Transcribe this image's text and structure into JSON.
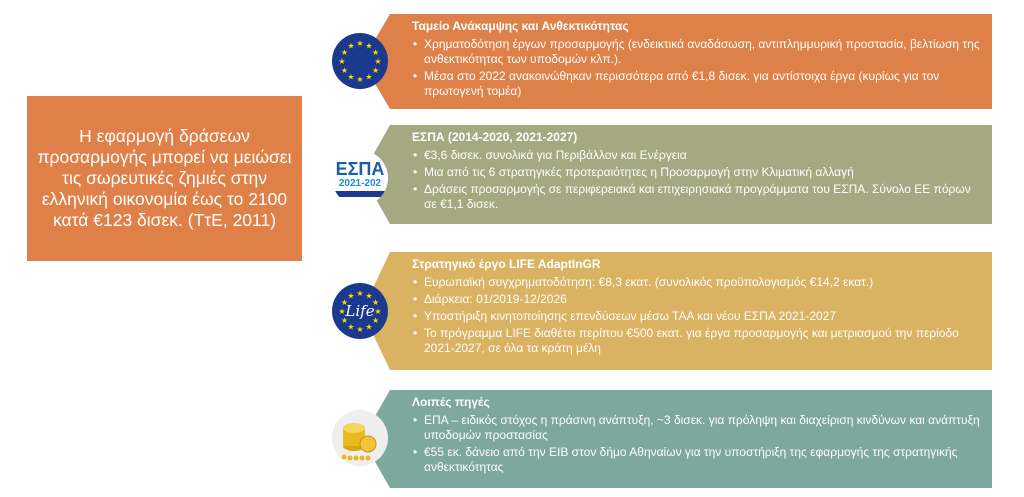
{
  "lead_text": "Η εφαρμογή δράσεων προσαρμογής μπορεί να μειώσει τις σωρευτικές ζημιές στην ελληνική οικονομία έως το 2100 κατά €123 δισεκ. (ΤτΕ, 2011)",
  "panels": [
    {
      "title": "Ταμείο Ανάκαμψης και Ανθεκτικότητας",
      "icon": "eu-flag-icon",
      "color": "#DE8149",
      "bullets": [
        "Χρηματοδότηση έργων προσαρμογής (ενδεικτικά αναδάσωση, αντιπλημμυρική προστασία, βελτίωση της ανθεκτικότητας των υποδομών κλπ.).",
        "Μέσα στο 2022 ανακοινώθηκαν περισσότερα από €1,8 δισεκ. για αντίστοιχα έργα (κυρίως για τον πρωτογενή τομέα)"
      ]
    },
    {
      "title": "ΕΣΠΑ (2014-2020, 2021-2027)",
      "icon": "espa-logo-icon",
      "color": "#A4A981",
      "logo_text": [
        "ΕΣΠΑ",
        "2021-202"
      ],
      "bullets": [
        "€3,6 δισεκ. συνολικά για Περιβάλλον και Ενέργεια",
        "Μια από τις 6 στρατηγικές προτεραιότητες η Προσαρμογή στην Κλιματική αλλαγή",
        "Δράσεις προσαρμογής σε περιφερειακά και επιχειρησιακά προγράμματα του ΕΣΠΑ. Σύνολο ΕΕ πόρων σε €1,1 δισεκ."
      ]
    },
    {
      "title": "Στρατηγικό έργο LIFE AdaptInGR",
      "icon": "life-logo-icon",
      "color": "#D9B262",
      "logo_text": "Life",
      "bullets": [
        "Ευρωπαϊκή συγχρηματοδότηση: €8,3 εκατ. (συνολικός προϋπολογισμός €14,2 εκατ.)",
        "Διάρκεια: 01/2019-12/2026",
        "Υποστήριξη κινητοποίησης επενδύσεων μέσω ΤΑΑ και νέου ΕΣΠΑ 2021-2027",
        "Το πρόγραμμα LIFE διαθέτει περίπου €500 εκατ. για έργα προσαρμογής και μετριασμού την περίοδο 2021-2027, σε όλα τα κράτη μέλη"
      ]
    },
    {
      "title": "Λοιπές πηγές",
      "icon": "gold-coins-icon",
      "color": "#7CA89D",
      "bullets": [
        "ΕΠΑ – ειδικός στόχος η πράσινη ανάπτυξη, ~3 δισεκ. για πρόληψη και διαχείριση κινδύνων και ανάπτυξη υποδομών προστασίας",
        "€55 εκ. δάνειο από την ΕΙΒ στον δήμο Αθηναίων για την υποστήριξη της εφαρμογής της στρατηγικής ανθεκτικότητας"
      ]
    }
  ]
}
